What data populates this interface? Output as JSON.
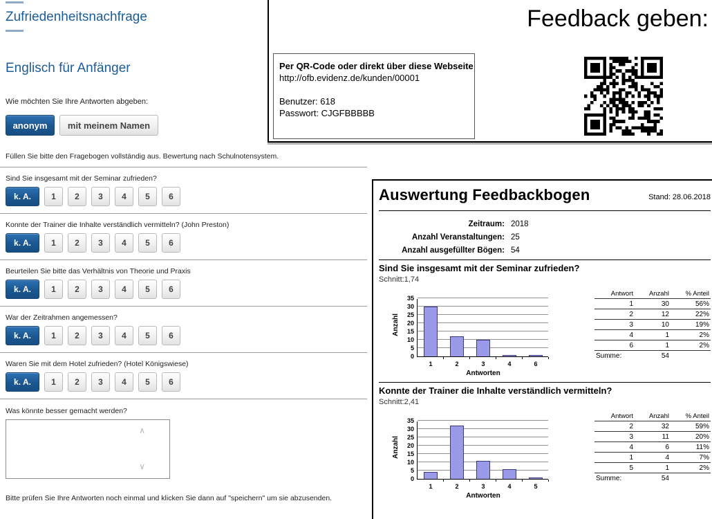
{
  "form": {
    "page_title": "Zufriedenheitsnachfrage",
    "course_title": "Englisch für Anfänger",
    "mode_prompt": "Wie möchten Sie Ihre Antworten abgeben:",
    "mode_buttons": {
      "anonymous": "anonym",
      "named": "mit meinem Namen"
    },
    "instruction": "Füllen Sie bitte den Fragebogen vollständig aus. Bewertung nach Schulnotensystem.",
    "scale_labels": [
      "k. A.",
      "1",
      "2",
      "3",
      "4",
      "5",
      "6"
    ],
    "questions": [
      "Sind Sie insgesamt mit der Seminar zufrieden?",
      "Konnte der Trainer die Inhalte verständlich vermitteln? (John Preston)",
      "Beurteilen Sie bitte das Verhältnis von Theorie und Praxis",
      "War der Zeitrahmen angemessen?",
      "Waren Sie mit dem Hotel zufrieden? (Hotel Königswiese)"
    ],
    "open_question": "Was könnte besser gemacht werden?",
    "comment_value": "",
    "final_note": "Bitte prüfen Sie Ihre Antworten noch einmal und klicken Sie dann auf \"speichern\" um sie abzusenden."
  },
  "feedback_panel": {
    "heading": "Feedback geben:",
    "access_box": {
      "line1": "Per QR-Code oder direkt über diese Webseite:",
      "url": "http://ofb.evidenz.de/kunden/00001",
      "user": "Benutzer: 618",
      "password": "Passwort: CJGFBBBBB"
    }
  },
  "report": {
    "title": "Auswertung Feedbackbogen",
    "stand": "Stand: 28.06.2018",
    "meta": [
      {
        "label": "Zeitraum:",
        "value": "2018"
      },
      {
        "label": "Anzahl Veranstaltungen:",
        "value": "25"
      },
      {
        "label": "Anzahl ausgefüllter Bögen:",
        "value": "54"
      }
    ],
    "sections": [
      {
        "question": "Sind Sie insgesamt mit der Seminar zufrieden?",
        "schnitt": "Schnitt:1,74",
        "table": {
          "headers": [
            "Antwort",
            "Anzahl",
            "% Anteil"
          ],
          "rows": [
            [
              "1",
              "30",
              "56%"
            ],
            [
              "2",
              "12",
              "22%"
            ],
            [
              "3",
              "10",
              "19%"
            ],
            [
              "4",
              "1",
              "2%"
            ],
            [
              "6",
              "1",
              "2%"
            ]
          ],
          "footer": {
            "label": "Summe:",
            "value": "54"
          }
        }
      },
      {
        "question": "Konnte der Trainer die Inhalte verständlich vermitteln?",
        "schnitt": "Schnitt:2,41",
        "table": {
          "headers": [
            "Antwort",
            "Anzahl",
            "% Anteil"
          ],
          "rows": [
            [
              "2",
              "32",
              "59%"
            ],
            [
              "3",
              "11",
              "20%"
            ],
            [
              "4",
              "6",
              "11%"
            ],
            [
              "1",
              "4",
              "7%"
            ],
            [
              "5",
              "1",
              "2%"
            ]
          ],
          "footer": {
            "label": "Summe:",
            "value": "54"
          }
        }
      }
    ]
  },
  "chart_data": [
    {
      "type": "bar",
      "title": "Sind Sie insgesamt mit der Seminar zufrieden?",
      "categories": [
        "1",
        "2",
        "3",
        "4",
        "6"
      ],
      "values": [
        30,
        12,
        10,
        1,
        1
      ],
      "xlabel": "Antworten",
      "ylabel": "Anzahl",
      "ylim": [
        0,
        35
      ],
      "ytick_step": 5,
      "grid": true,
      "bar_color": "#9a9ae8"
    },
    {
      "type": "bar",
      "title": "Konnte der Trainer die Inhalte verständlich vermitteln?",
      "categories": [
        "1",
        "2",
        "3",
        "4",
        "5"
      ],
      "values": [
        4,
        32,
        11,
        6,
        1
      ],
      "xlabel": "Antworten",
      "ylabel": "Anzahl",
      "ylim": [
        0,
        35
      ],
      "ytick_step": 5,
      "grid": true,
      "bar_color": "#9a9ae8"
    }
  ],
  "colors": {
    "heading_blue": "#1c5c9b",
    "button_blue": "#1b578f",
    "bar_fill": "#9a9ae8",
    "bar_border": "#39397c",
    "separator": "#9a9a9a"
  }
}
